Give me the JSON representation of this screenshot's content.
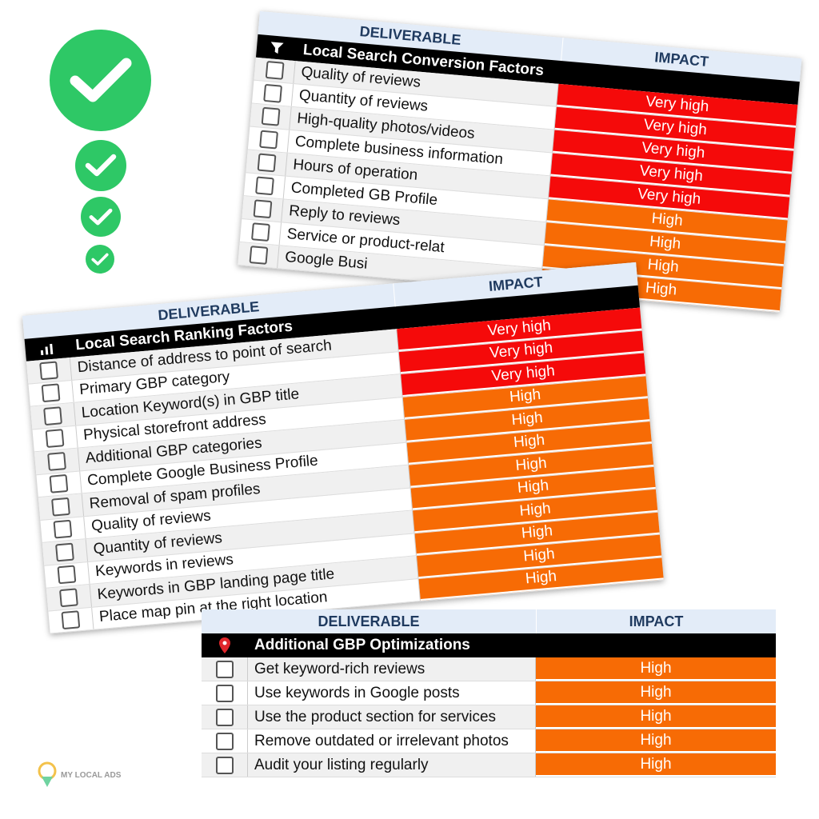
{
  "colors": {
    "very_high": "#f50a0a",
    "high": "#f76b05",
    "check": "#2ec866",
    "header_bg": "#e3ecf8"
  },
  "conversion": {
    "col_deliverable": "DELIVERABLE",
    "col_impact": "IMPACT",
    "title": "Local Search Conversion Factors",
    "icon": "filter-icon",
    "rows": [
      {
        "label": "Quality of reviews",
        "impact": "Very high",
        "level": "very_high"
      },
      {
        "label": "Quantity of reviews",
        "impact": "Very high",
        "level": "very_high"
      },
      {
        "label": "High-quality photos/videos",
        "impact": "Very high",
        "level": "very_high"
      },
      {
        "label": "Complete business information",
        "impact": "Very high",
        "level": "very_high"
      },
      {
        "label": "Hours of operation",
        "impact": "Very high",
        "level": "very_high"
      },
      {
        "label": "Completed GB Profile",
        "impact": "High",
        "level": "high"
      },
      {
        "label": "Reply to reviews",
        "impact": "High",
        "level": "high"
      },
      {
        "label": "Service or product-relat",
        "impact": "High",
        "level": "high"
      },
      {
        "label": "Google Busi",
        "impact": "High",
        "level": "high"
      }
    ]
  },
  "ranking": {
    "col_deliverable": "DELIVERABLE",
    "col_impact": "IMPACT",
    "title": "Local Search Ranking Factors",
    "icon": "bar-chart-icon",
    "rows": [
      {
        "label": "Distance of address to point of search",
        "impact": "Very high",
        "level": "very_high"
      },
      {
        "label": "Primary GBP category",
        "impact": "Very high",
        "level": "very_high"
      },
      {
        "label": "Location Keyword(s) in GBP title",
        "impact": "Very high",
        "level": "very_high"
      },
      {
        "label": "Physical storefront address",
        "impact": "High",
        "level": "high"
      },
      {
        "label": "Additional GBP categories",
        "impact": "High",
        "level": "high"
      },
      {
        "label": "Complete Google Business Profile",
        "impact": "High",
        "level": "high"
      },
      {
        "label": "Removal of spam profiles",
        "impact": "High",
        "level": "high"
      },
      {
        "label": "Quality of reviews",
        "impact": "High",
        "level": "high"
      },
      {
        "label": "Quantity of reviews",
        "impact": "High",
        "level": "high"
      },
      {
        "label": "Keywords in reviews",
        "impact": "High",
        "level": "high"
      },
      {
        "label": "Keywords in GBP landing page title",
        "impact": "High",
        "level": "high"
      },
      {
        "label": "Place map pin at the right location",
        "impact": "High",
        "level": "high"
      }
    ]
  },
  "additional": {
    "col_deliverable": "DELIVERABLE",
    "col_impact": "IMPACT",
    "title": "Additional GBP Optimizations",
    "icon": "map-pin-icon",
    "rows": [
      {
        "label": "Get keyword-rich reviews",
        "impact": "High",
        "level": "high"
      },
      {
        "label": "Use keywords in Google posts",
        "impact": "High",
        "level": "high"
      },
      {
        "label": "Use the product section for services",
        "impact": "High",
        "level": "high"
      },
      {
        "label": "Remove outdated or irrelevant photos",
        "impact": "High",
        "level": "high"
      },
      {
        "label": "Audit your listing regularly",
        "impact": "High",
        "level": "high"
      }
    ]
  },
  "logo": {
    "text": "MY LOCAL ADS"
  }
}
